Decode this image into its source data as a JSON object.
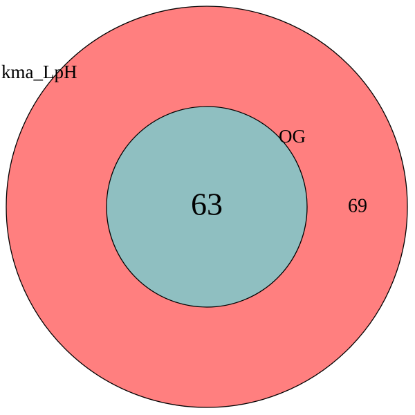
{
  "venn": {
    "sets": [
      {
        "name": "kma_LpH",
        "color": "#ff7f7f"
      },
      {
        "name": "OG",
        "color": "#8fbfc1"
      }
    ],
    "regions": {
      "kma_LpH_only": "69",
      "intersection": "63"
    }
  }
}
